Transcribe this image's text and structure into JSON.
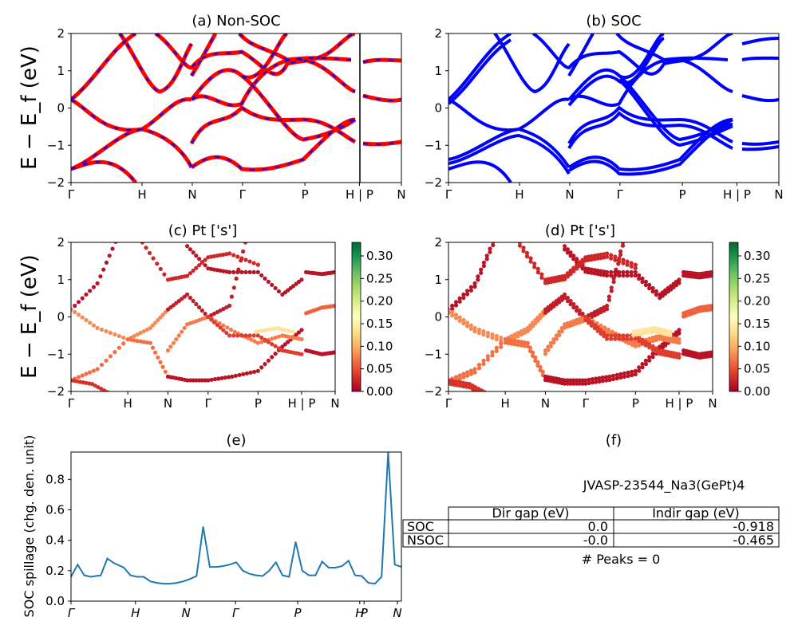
{
  "chart_data": [
    {
      "type": "line",
      "title": "(a) Non-SOC",
      "ylabel": "E − E_f (eV)",
      "ylim": [
        -2,
        2
      ],
      "yticks": [
        "2",
        "1",
        "0",
        "−1",
        "−2"
      ],
      "kpath": [
        "Γ",
        "H",
        "N",
        "Γ",
        "P",
        "H | P",
        "N"
      ],
      "series_colors": [
        "#ff0000",
        "#0000ff"
      ]
    },
    {
      "type": "line",
      "title": "(b) SOC",
      "ylim": [
        -2,
        2
      ],
      "yticks": [
        "2",
        "1",
        "0",
        "−1",
        "−2"
      ],
      "kpath": [
        "Γ",
        "H",
        "N",
        "Γ",
        "P",
        "H | P",
        "N"
      ],
      "series_colors": [
        "#0000ff"
      ]
    },
    {
      "type": "scatter",
      "title": "(c)  Pt ['s']",
      "ylabel": "E − E_f (eV)",
      "ylim": [
        -2,
        2
      ],
      "yticks": [
        "2",
        "1",
        "0",
        "−1",
        "−2"
      ],
      "kpath": [
        "Γ",
        "H",
        "N",
        "Γ",
        "P",
        "H | P",
        "N"
      ],
      "colorbar": {
        "range": [
          0,
          0.33
        ],
        "ticks": [
          "0.00",
          "0.05",
          "0.10",
          "0.15",
          "0.20",
          "0.25",
          "0.30"
        ],
        "colormap": "RdYlGn"
      }
    },
    {
      "type": "scatter",
      "title": "(d) Pt ['s']",
      "ylim": [
        -2,
        2
      ],
      "yticks": [
        "2",
        "1",
        "0",
        "−1",
        "−2"
      ],
      "kpath": [
        "Γ",
        "H",
        "N",
        "Γ",
        "P",
        "H | P",
        "N"
      ],
      "colorbar": {
        "range": [
          0,
          0.33
        ],
        "ticks": [
          "0.00",
          "0.05",
          "0.10",
          "0.15",
          "0.20",
          "0.25",
          "0.30"
        ],
        "colormap": "RdYlGn"
      }
    },
    {
      "type": "line",
      "title": "(e)",
      "ylabel": "SOC spillage (chg. den. unit)",
      "ylim": [
        0,
        0.98
      ],
      "yticks": [
        "0.8",
        "0.6",
        "0.4",
        "0.2",
        "0.0"
      ],
      "kpath_italic": [
        "Γ",
        "H",
        "N",
        "Γ",
        "P",
        "H",
        "P",
        "N"
      ],
      "line_color": "#1f77b4",
      "x": [
        0,
        2,
        4,
        6,
        9,
        11,
        13,
        16,
        18,
        20,
        22,
        24,
        26,
        28,
        30,
        32,
        34,
        36,
        38,
        40,
        42,
        44,
        46,
        48,
        50,
        52,
        54,
        56,
        58,
        60,
        62,
        64,
        66,
        68,
        70,
        72,
        74,
        76,
        78,
        80,
        82,
        84,
        86,
        88,
        90,
        92,
        94,
        96,
        98,
        100
      ],
      "values": [
        0.16,
        0.24,
        0.17,
        0.16,
        0.17,
        0.28,
        0.25,
        0.22,
        0.17,
        0.16,
        0.16,
        0.13,
        0.12,
        0.115,
        0.115,
        0.12,
        0.13,
        0.145,
        0.165,
        0.49,
        0.225,
        0.225,
        0.23,
        0.24,
        0.255,
        0.2,
        0.18,
        0.17,
        0.165,
        0.2,
        0.255,
        0.17,
        0.16,
        0.39,
        0.2,
        0.17,
        0.17,
        0.26,
        0.22,
        0.22,
        0.23,
        0.265,
        0.17,
        0.165,
        0.12,
        0.115,
        0.16,
        0.98,
        0.24,
        0.225
      ]
    }
  ],
  "table_panel": {
    "title": "(f)",
    "system": "JVASP-23544_Na3(GePt)4",
    "headers": [
      "",
      "Dir gap (eV)",
      "Indir gap (eV)"
    ],
    "rows": [
      {
        "label": "SOC",
        "dir": "0.0",
        "indir": "-0.918"
      },
      {
        "label": "NSOC",
        "dir": "-0.0",
        "indir": "-0.465"
      }
    ],
    "peaks": "# Peaks = 0"
  }
}
